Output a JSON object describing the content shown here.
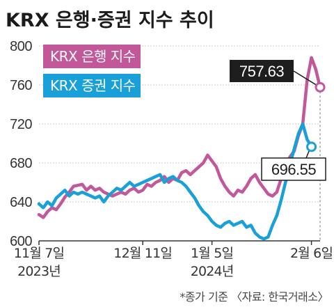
{
  "title": "KRX 은행·증권 지수 추이",
  "source_note": "*종가 기준 〈자료: 한국거래소〉",
  "colors": {
    "bank": "#c2579a",
    "securities": "#1aa0d8",
    "callout_bg": "#1e1e1e"
  },
  "chart_data": {
    "type": "line",
    "title": "KRX 은행·증권 지수 추이",
    "ylim": [
      600,
      800
    ],
    "y_ticks": [
      800,
      760,
      720,
      680,
      640,
      600
    ],
    "x_ticks": [
      {
        "label": "11월 7일",
        "sub": "2023년",
        "index": 0
      },
      {
        "label": "12월 11일",
        "sub": "",
        "index": 24
      },
      {
        "label": "1월 5일",
        "sub": "2024년",
        "index": 40
      },
      {
        "label": "2월 6일",
        "sub": "",
        "index": 63
      }
    ],
    "series": [
      {
        "name": "KRX 은행 지수",
        "key": "bank",
        "values": [
          627,
          624,
          630,
          634,
          632,
          638,
          645,
          650,
          656,
          657,
          658,
          652,
          656,
          652,
          654,
          650,
          648,
          646,
          648,
          650,
          648,
          652,
          654,
          650,
          652,
          658,
          656,
          660,
          662,
          666,
          660,
          664,
          662,
          670,
          672,
          668,
          672,
          676,
          680,
          688,
          682,
          676,
          664,
          656,
          650,
          646,
          652,
          650,
          656,
          664,
          668,
          660,
          654,
          648,
          646,
          650,
          664,
          676,
          686,
          692,
          708,
          720,
          765,
          788,
          776,
          757.63
        ]
      },
      {
        "name": "KRX 증권 지수",
        "key": "securities",
        "values": [
          638,
          634,
          640,
          636,
          644,
          648,
          652,
          646,
          650,
          648,
          650,
          648,
          646,
          644,
          646,
          640,
          646,
          650,
          654,
          652,
          656,
          660,
          656,
          658,
          660,
          662,
          664,
          666,
          668,
          660,
          664,
          666,
          662,
          660,
          656,
          650,
          644,
          636,
          630,
          626,
          620,
          616,
          614,
          618,
          620,
          616,
          618,
          620,
          614,
          616,
          608,
          604,
          602,
          604,
          616,
          626,
          642,
          660,
          678,
          694,
          710,
          720,
          704,
          696.55
        ]
      }
    ],
    "callouts": [
      {
        "series": "bank",
        "label": "757.63",
        "value": 757.63
      },
      {
        "series": "securities",
        "label": "696.55",
        "value": 696.55
      }
    ]
  }
}
